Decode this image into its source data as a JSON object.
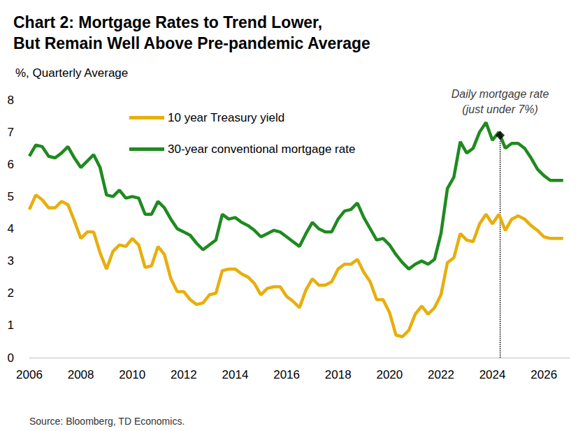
{
  "chart_data": {
    "type": "line",
    "title": "Chart 2: Mortgage Rates to Trend Lower,\nBut Remain Well Above Pre-pandemic Average",
    "y_label": "%, Quarterly Average",
    "source": "Source: Bloomberg, TD Economics.",
    "x": [
      2006,
      2006.25,
      2006.5,
      2006.75,
      2007,
      2007.25,
      2007.5,
      2007.75,
      2008,
      2008.25,
      2008.5,
      2008.75,
      2009,
      2009.25,
      2009.5,
      2009.75,
      2010,
      2010.25,
      2010.5,
      2010.75,
      2011,
      2011.25,
      2011.5,
      2011.75,
      2012,
      2012.25,
      2012.5,
      2012.75,
      2013,
      2013.25,
      2013.5,
      2013.75,
      2014,
      2014.25,
      2014.5,
      2014.75,
      2015,
      2015.25,
      2015.5,
      2015.75,
      2016,
      2016.25,
      2016.5,
      2016.75,
      2017,
      2017.25,
      2017.5,
      2017.75,
      2018,
      2018.25,
      2018.5,
      2018.75,
      2019,
      2019.25,
      2019.5,
      2019.75,
      2020,
      2020.25,
      2020.5,
      2020.75,
      2021,
      2021.25,
      2021.5,
      2021.75,
      2022,
      2022.25,
      2022.5,
      2022.75,
      2023,
      2023.25,
      2023.5,
      2023.75,
      2024,
      2024.25,
      2024.5,
      2024.75,
      2025,
      2025.25,
      2025.5,
      2025.75,
      2026,
      2026.25,
      2026.5,
      2026.75
    ],
    "series": [
      {
        "name": "10 year Treasury yield",
        "color": "#E8AE0C",
        "values": [
          4.6,
          5.05,
          4.9,
          4.65,
          4.65,
          4.85,
          4.75,
          4.25,
          3.7,
          3.9,
          3.9,
          3.25,
          2.75,
          3.3,
          3.5,
          3.45,
          3.7,
          3.5,
          2.8,
          2.85,
          3.45,
          3.2,
          2.45,
          2.05,
          2.05,
          1.8,
          1.65,
          1.7,
          1.95,
          2.0,
          2.7,
          2.75,
          2.75,
          2.6,
          2.5,
          2.3,
          1.95,
          2.15,
          2.2,
          2.2,
          1.9,
          1.75,
          1.55,
          2.1,
          2.45,
          2.25,
          2.25,
          2.35,
          2.75,
          2.9,
          2.9,
          3.05,
          2.65,
          2.35,
          1.8,
          1.8,
          1.4,
          0.7,
          0.65,
          0.85,
          1.35,
          1.6,
          1.35,
          1.55,
          1.95,
          2.95,
          3.1,
          3.85,
          3.65,
          3.6,
          4.15,
          4.45,
          4.15,
          4.45,
          3.95,
          4.3,
          4.4,
          4.3,
          4.1,
          3.95,
          3.75,
          3.7,
          3.7,
          3.7
        ]
      },
      {
        "name": "30-year conventional mortgage rate",
        "color": "#1F8A1F",
        "values": [
          6.25,
          6.6,
          6.55,
          6.25,
          6.2,
          6.35,
          6.55,
          6.2,
          5.9,
          6.1,
          6.3,
          5.9,
          5.05,
          5.0,
          5.2,
          4.95,
          5.0,
          4.95,
          4.45,
          4.45,
          4.85,
          4.65,
          4.3,
          4.0,
          3.9,
          3.8,
          3.55,
          3.35,
          3.5,
          3.65,
          4.45,
          4.3,
          4.35,
          4.2,
          4.1,
          3.95,
          3.75,
          3.85,
          3.95,
          3.9,
          3.75,
          3.6,
          3.45,
          3.85,
          4.2,
          4.0,
          3.9,
          3.9,
          4.3,
          4.55,
          4.6,
          4.8,
          4.35,
          4.0,
          3.65,
          3.7,
          3.5,
          3.2,
          2.95,
          2.75,
          2.9,
          3.0,
          2.9,
          3.05,
          3.85,
          5.25,
          5.6,
          6.7,
          6.35,
          6.5,
          7.0,
          7.3,
          6.75,
          7.0,
          6.5,
          6.65,
          6.65,
          6.5,
          6.2,
          5.85,
          5.65,
          5.5,
          5.5,
          5.5
        ]
      }
    ],
    "annotation": {
      "text": "Daily mortgage rate\n(just under 7%)",
      "x": 2024.3,
      "y": 6.9
    },
    "reference_line": {
      "x": 2024.3
    },
    "xlim": [
      2006,
      2027
    ],
    "xticks": [
      2006,
      2008,
      2010,
      2012,
      2014,
      2016,
      2018,
      2020,
      2022,
      2024,
      2026
    ],
    "ylim": [
      0,
      8
    ],
    "yticks": [
      0,
      1,
      2,
      3,
      4,
      5,
      6,
      7,
      8
    ],
    "grid": false,
    "legend": "upper left"
  }
}
